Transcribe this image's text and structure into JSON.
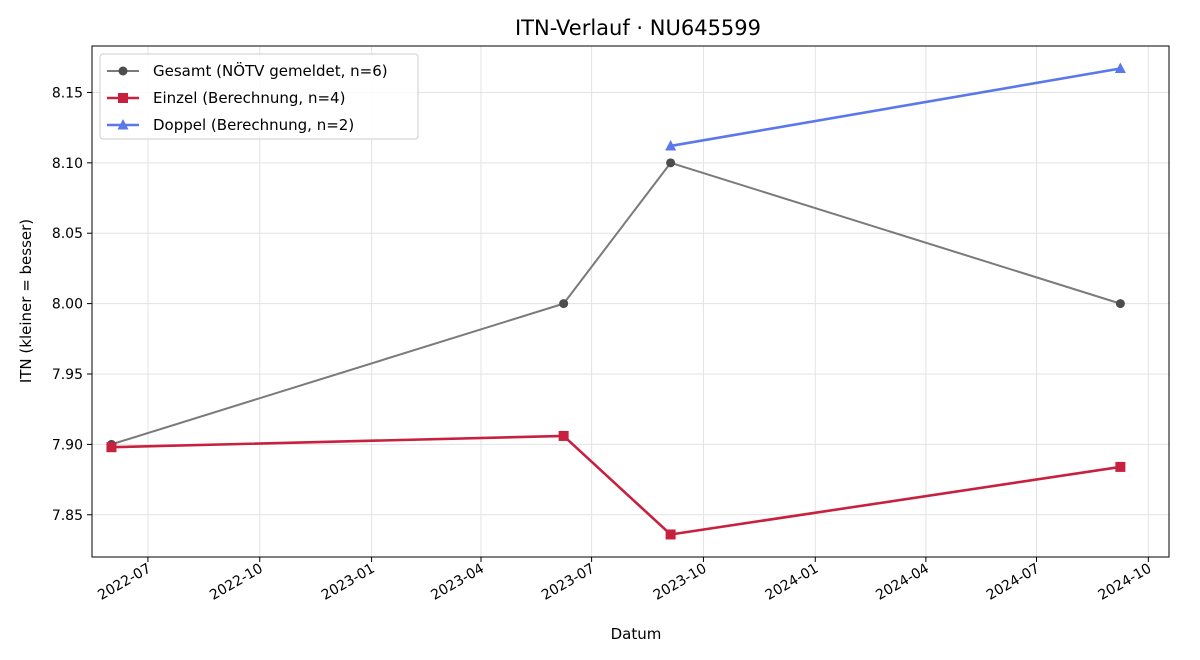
{
  "chart_data": {
    "type": "line",
    "title": "ITN-Verlauf · NU645599",
    "xlabel": "Datum",
    "ylabel": "ITN  (kleiner = besser)",
    "xlim": [
      "2022-05-16",
      "2024-10-18"
    ],
    "ylim": [
      7.82,
      8.183
    ],
    "x_ticks": [
      "2022-07-01",
      "2022-10-01",
      "2023-01-01",
      "2023-04-01",
      "2023-07-01",
      "2023-10-01",
      "2024-01-01",
      "2024-04-01",
      "2024-07-01",
      "2024-10-01"
    ],
    "x_tick_labels": [
      "2022-07",
      "2022-10",
      "2023-01",
      "2023-04",
      "2023-07",
      "2023-10",
      "2024-01",
      "2024-04",
      "2024-07",
      "2024-10"
    ],
    "y_ticks": [
      7.85,
      7.9,
      7.95,
      8.0,
      8.05,
      8.1,
      8.15
    ],
    "y_tick_labels": [
      "7.85",
      "7.90",
      "7.95",
      "8.00",
      "8.05",
      "8.10",
      "8.15"
    ],
    "grid": true,
    "legend_position": "top-left",
    "series": [
      {
        "name": "Gesamt (NÖTV gemeldet, n=6)",
        "color": "#7a7a7a",
        "marker_color": "#4d4d4d",
        "marker": "circle",
        "points": [
          {
            "x": "2022-06-01",
            "y": 7.9
          },
          {
            "x": "2023-06-08",
            "y": 8.0
          },
          {
            "x": "2023-09-04",
            "y": 8.1
          },
          {
            "x": "2024-09-08",
            "y": 8.0
          }
        ]
      },
      {
        "name": "Einzel (Berechnung, n=4)",
        "color": "#c8203f",
        "marker_color": "#c8203f",
        "marker": "square",
        "points": [
          {
            "x": "2022-06-01",
            "y": 7.898
          },
          {
            "x": "2023-06-08",
            "y": 7.906
          },
          {
            "x": "2023-09-04",
            "y": 7.836
          },
          {
            "x": "2024-09-08",
            "y": 7.884
          }
        ]
      },
      {
        "name": "Doppel (Berechnung, n=2)",
        "color": "#5a78ec",
        "marker_color": "#5a78ec",
        "marker": "triangle",
        "points": [
          {
            "x": "2023-09-04",
            "y": 8.112
          },
          {
            "x": "2024-09-08",
            "y": 8.167
          }
        ]
      }
    ]
  }
}
